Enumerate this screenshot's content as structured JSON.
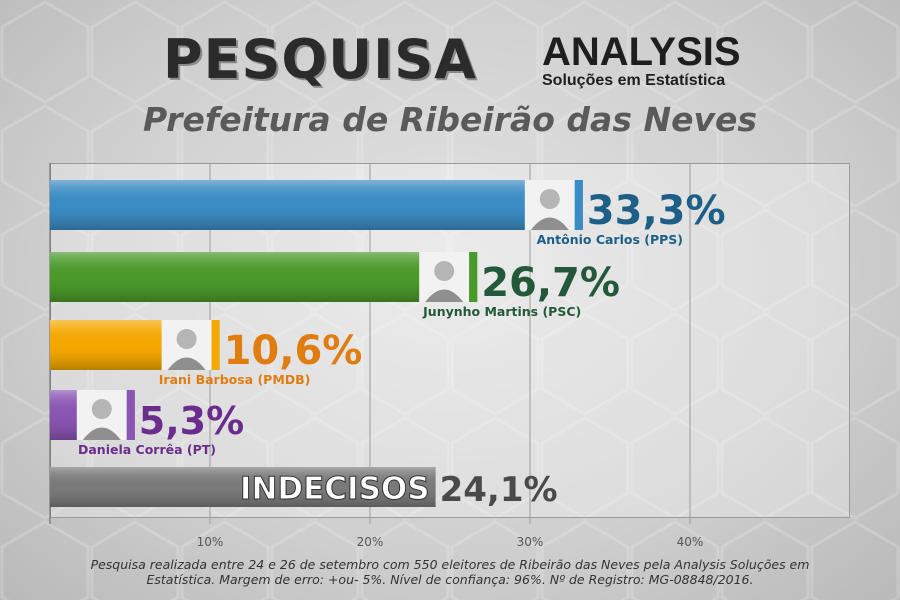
{
  "header": {
    "title": "PESQUISA",
    "brand_name": "ANALYSIS",
    "brand_tagline": "Soluções em Estatística",
    "subtitle": "Prefeitura de Ribeirão das Neves"
  },
  "chart_data": {
    "type": "bar",
    "orientation": "horizontal",
    "title": "",
    "xlabel": "",
    "ylabel": "",
    "xlim": [
      0,
      50
    ],
    "x_ticks": [
      "10%",
      "20%",
      "30%",
      "40%"
    ],
    "grid": true,
    "categories": [
      "Antônio Carlos (PPS)",
      "Junynho Martins (PSC)",
      "Irani Barbosa (PMDB)",
      "Daniela Corrêa (PT)",
      "INDECISOS"
    ],
    "values": [
      33.3,
      26.7,
      10.6,
      5.3,
      24.1
    ],
    "value_labels": [
      "33,3%",
      "26,7%",
      "10,6%",
      "5,3%",
      "24,1%"
    ],
    "colors": [
      "#3a8cc4",
      "#4a9a2a",
      "#f4a800",
      "#8a55b3",
      "#7a7a7a"
    ],
    "label_colors": [
      "#1d5f86",
      "#23583a",
      "#e07d10",
      "#6a2d8c",
      "#4a4a4a"
    ]
  },
  "footnote": "Pesquisa realizada entre 24 e 26 de setembro com 550 eleitores de Ribeirão das Neves pela Analysis Soluções em Estatística. Margem de erro: +ou- 5%. Nível de confiança: 96%. Nº de Registro: MG-08848/2016."
}
